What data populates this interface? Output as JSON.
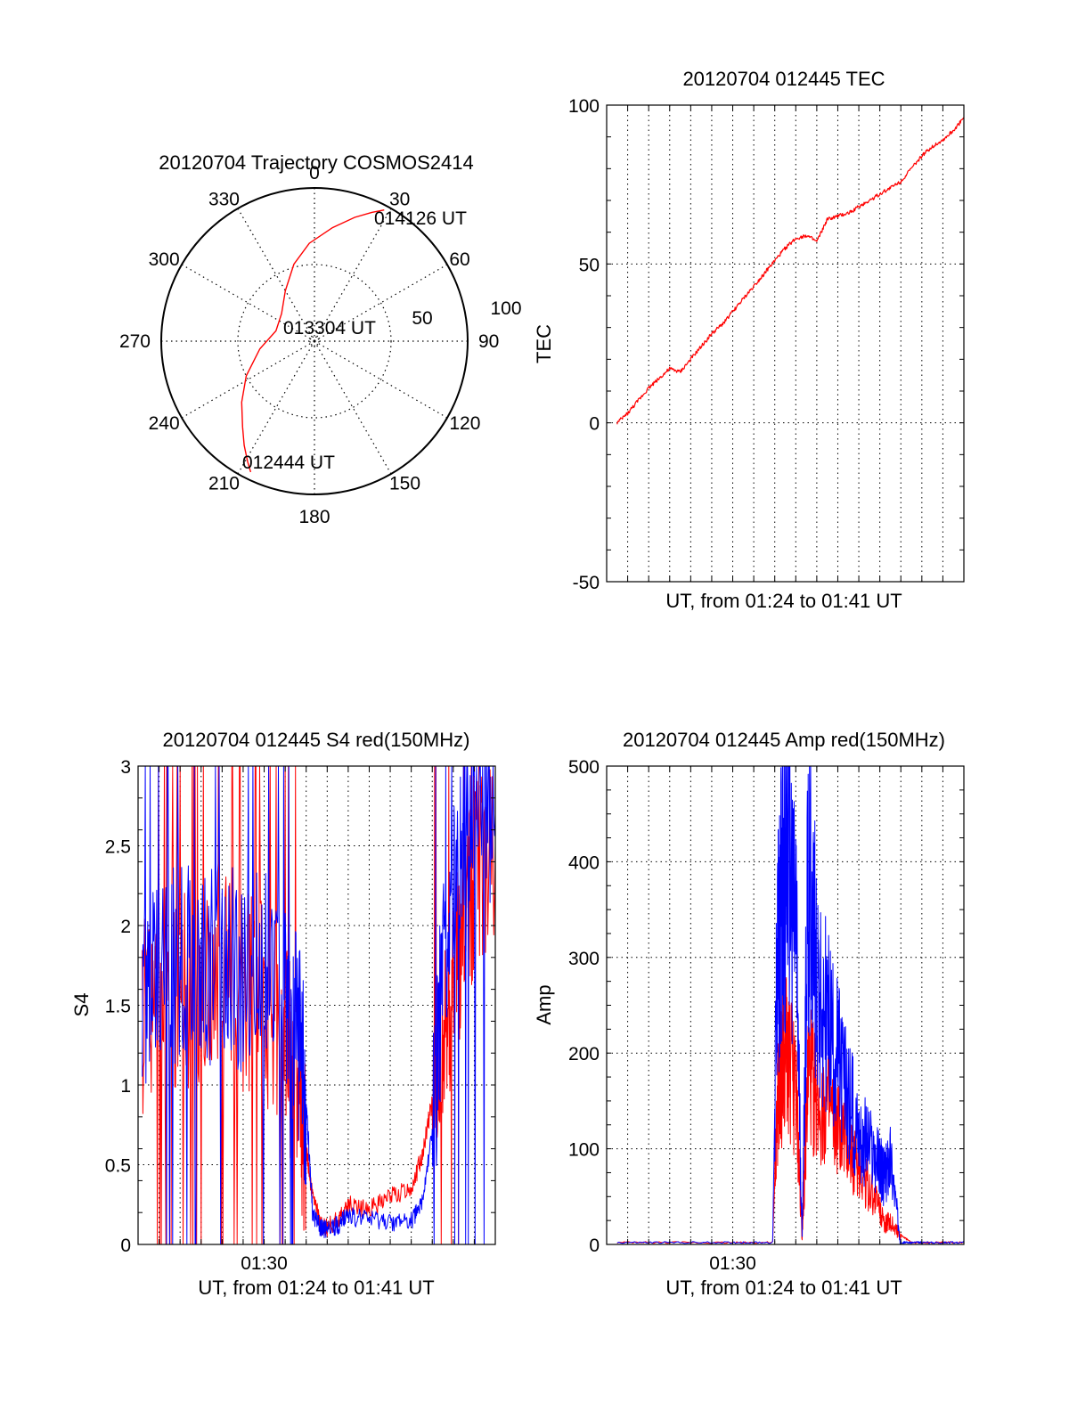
{
  "chart_data": [
    {
      "id": "trajectory",
      "type": "polar",
      "title": "20120704 Trajectory COSMOS2414",
      "angle_labels": [
        "0",
        "30",
        "60",
        "90",
        "120",
        "150",
        "180",
        "210",
        "240",
        "270",
        "300",
        "330"
      ],
      "radial_labels": [
        "50",
        "100"
      ],
      "rlim": [
        0,
        100
      ],
      "grid": true,
      "series": [
        {
          "color": "#ff0000",
          "points": [
            [
              206,
              95
            ],
            [
              209,
              90
            ],
            [
              214,
              82
            ],
            [
              220,
              73
            ],
            [
              230,
              62
            ],
            [
              243,
              50
            ],
            [
              262,
              36
            ],
            [
              285,
              26
            ],
            [
              310,
              28
            ],
            [
              330,
              38
            ],
            [
              345,
              52
            ],
            [
              357,
              64
            ],
            [
              9,
              75
            ],
            [
              18,
              85
            ],
            [
              24,
              92
            ],
            [
              28,
              97
            ]
          ]
        }
      ],
      "annotations": [
        {
          "text": "014126 UT",
          "az": 28,
          "r": 97
        },
        {
          "text": "013304 UT",
          "az": 300,
          "r": 5
        },
        {
          "text": "012444 UT",
          "az": 206,
          "r": 95
        }
      ]
    },
    {
      "id": "tec",
      "type": "line",
      "title": "20120704 012445 TEC",
      "xlabel": "UT, from 01:24 to 01:41 UT",
      "ylabel": "TEC",
      "xlim": [
        0,
        17
      ],
      "ylim": [
        -50,
        100
      ],
      "yticks": [
        "-50",
        "0",
        "50",
        "100"
      ],
      "grid": true,
      "series": [
        {
          "color": "#ff0000",
          "x": [
            0.5,
            1,
            1.5,
            2,
            2.5,
            3,
            3.5,
            4,
            4.5,
            5,
            5.5,
            6,
            6.5,
            7,
            7.5,
            8,
            8.5,
            9,
            9.5,
            10,
            10.5,
            11,
            11.5,
            12,
            12.5,
            13,
            13.5,
            14,
            14.5,
            15,
            15.5,
            16,
            16.5,
            17
          ],
          "y": [
            0,
            3,
            7,
            11,
            14,
            17,
            16,
            20,
            24,
            28,
            31,
            35,
            39,
            43,
            47,
            51,
            55,
            58,
            59,
            57,
            64,
            65,
            66,
            68,
            70,
            72,
            74,
            76,
            80,
            84,
            87,
            89,
            92,
            96
          ]
        }
      ]
    },
    {
      "id": "s4",
      "type": "line",
      "title": "20120704 012445 S4 red(150MHz)",
      "xlabel": "UT, from 01:24 to 01:41 UT",
      "ylabel": "S4",
      "xticks": [
        "01:30"
      ],
      "xlim": [
        0,
        17
      ],
      "ylim": [
        0,
        3
      ],
      "yticks": [
        "0",
        "0.5",
        "1",
        "1.5",
        "2",
        "2.5",
        "3"
      ],
      "grid": true,
      "series": [
        {
          "color": "#ff0000",
          "x": [
            0.2,
            1,
            2,
            3,
            4,
            5,
            6,
            7,
            7.6,
            8,
            8.3,
            8.7,
            9,
            9.5,
            10,
            11,
            12,
            13,
            13.5,
            14,
            14.5,
            15,
            15.5,
            16,
            17
          ],
          "y": [
            1.4,
            1.5,
            1.6,
            1.5,
            1.7,
            1.6,
            1.5,
            1.3,
            1.0,
            0.6,
            0.3,
            0.12,
            0.11,
            0.15,
            0.25,
            0.22,
            0.3,
            0.35,
            0.55,
            0.9,
            1.3,
            1.6,
            2.0,
            2.3,
            2.5
          ]
        },
        {
          "color": "#0000ff",
          "x": [
            0.2,
            1,
            2,
            3,
            4,
            5,
            6,
            7,
            7.6,
            8,
            8.3,
            8.7,
            9,
            9.5,
            10,
            11,
            12,
            13,
            13.5,
            14,
            14.5,
            15,
            15.5,
            16,
            17
          ],
          "y": [
            1.6,
            1.7,
            1.8,
            1.7,
            1.8,
            1.7,
            1.7,
            1.5,
            1.3,
            0.9,
            0.2,
            0.1,
            0.1,
            0.12,
            0.18,
            0.15,
            0.14,
            0.15,
            0.25,
            0.7,
            1.7,
            2.3,
            2.6,
            2.7,
            2.7
          ]
        }
      ]
    },
    {
      "id": "amp",
      "type": "line",
      "title": "20120704 012445 Amp red(150MHz)",
      "xlabel": "UT, from 01:24 to 01:41 UT",
      "ylabel": "Amp",
      "xticks": [
        "01:30"
      ],
      "xlim": [
        0,
        17
      ],
      "ylim": [
        0,
        500
      ],
      "yticks": [
        "0",
        "100",
        "200",
        "300",
        "400",
        "500"
      ],
      "grid": true,
      "series": [
        {
          "color": "#ff0000",
          "x": [
            0.5,
            3,
            6,
            7.9,
            8.1,
            8.3,
            8.6,
            9,
            9.3,
            9.6,
            10,
            10.5,
            11,
            11.5,
            12,
            12.5,
            13,
            13.2,
            13.5,
            14,
            14.5,
            15,
            16,
            17
          ],
          "y": [
            2,
            2,
            2,
            2,
            130,
            180,
            200,
            160,
            10,
            180,
            150,
            140,
            120,
            100,
            80,
            60,
            40,
            20,
            25,
            10,
            2,
            2,
            2,
            2
          ]
        },
        {
          "color": "#0000ff",
          "x": [
            0.5,
            3,
            6,
            7.9,
            8.1,
            8.3,
            8.6,
            9,
            9.3,
            9.6,
            10,
            10.5,
            11,
            11.5,
            12,
            12.5,
            13,
            13.2,
            13.5,
            14,
            14.5,
            15,
            16,
            17
          ],
          "y": [
            2,
            2,
            2,
            2,
            280,
            350,
            420,
            330,
            10,
            400,
            280,
            230,
            190,
            150,
            120,
            100,
            80,
            70,
            90,
            2,
            2,
            2,
            2,
            2
          ]
        }
      ]
    }
  ]
}
